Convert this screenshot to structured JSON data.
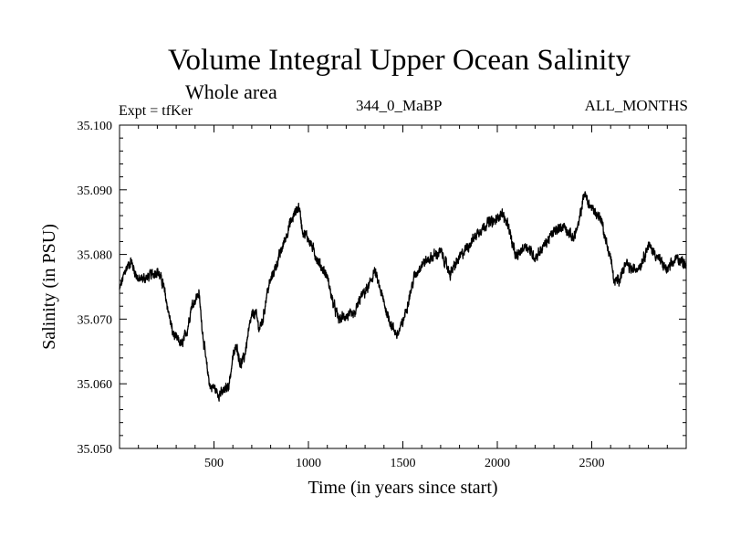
{
  "header": {
    "title": "Volume Integral Upper Ocean Salinity",
    "subtitle": "Whole area",
    "expt": "Expt = tfKer",
    "run": "344_0_MaBP",
    "months": "ALL_MONTHS"
  },
  "chart_data": {
    "type": "line",
    "title": "Volume Integral Upper Ocean Salinity",
    "xlabel": "Time (in years since start)",
    "ylabel": "Salinity (in PSU)",
    "xlim": [
      0,
      3000
    ],
    "ylim": [
      35.05,
      35.1
    ],
    "xticks": [
      500,
      1000,
      1500,
      2000,
      2500
    ],
    "yticks": [
      35.05,
      35.06,
      35.07,
      35.08,
      35.09,
      35.1
    ],
    "ytick_labels": [
      "35.050",
      "35.060",
      "35.070",
      "35.080",
      "35.090",
      "35.100"
    ],
    "grid": false,
    "series": [
      {
        "x": [
          0,
          30,
          60,
          100,
          150,
          200,
          230,
          260,
          280,
          300,
          330,
          360,
          380,
          400,
          420,
          440,
          460,
          480,
          500,
          520,
          540,
          560,
          580,
          600,
          620,
          640,
          660,
          680,
          700,
          720,
          740,
          760,
          780,
          800,
          850,
          900,
          930,
          950,
          970,
          1000,
          1050,
          1100,
          1130,
          1160,
          1200,
          1240,
          1280,
          1320,
          1350,
          1380,
          1410,
          1440,
          1470,
          1500,
          1530,
          1560,
          1600,
          1650,
          1700,
          1750,
          1800,
          1850,
          1900,
          1950,
          1980,
          2000,
          2020,
          2040,
          2060,
          2080,
          2100,
          2150,
          2200,
          2250,
          2300,
          2350,
          2400,
          2430,
          2460,
          2490,
          2520,
          2550,
          2580,
          2600,
          2620,
          2650,
          2680,
          2720,
          2760,
          2800,
          2850,
          2900,
          2950,
          3000
        ],
        "values": [
          35.0745,
          35.0775,
          35.079,
          35.076,
          35.0765,
          35.0775,
          35.0755,
          35.071,
          35.068,
          35.067,
          35.066,
          35.0685,
          35.072,
          35.073,
          35.074,
          35.068,
          35.063,
          35.0595,
          35.0595,
          35.0585,
          35.0585,
          35.059,
          35.06,
          35.064,
          35.066,
          35.063,
          35.064,
          35.0675,
          35.0705,
          35.071,
          35.0685,
          35.07,
          35.074,
          35.076,
          35.08,
          35.0845,
          35.0865,
          35.0875,
          35.0835,
          35.0825,
          35.079,
          35.0765,
          35.0725,
          35.07,
          35.0705,
          35.0705,
          35.0735,
          35.075,
          35.0775,
          35.0745,
          35.0715,
          35.069,
          35.0675,
          35.0695,
          35.073,
          35.0765,
          35.0785,
          35.0795,
          35.0805,
          35.077,
          35.0795,
          35.0815,
          35.0835,
          35.085,
          35.085,
          35.0855,
          35.0865,
          35.0855,
          35.0845,
          35.0815,
          35.0795,
          35.0815,
          35.0795,
          35.0815,
          35.0835,
          35.0845,
          35.0825,
          35.0845,
          35.0895,
          35.0875,
          35.0865,
          35.0855,
          35.0815,
          35.0795,
          35.0755,
          35.0765,
          35.0785,
          35.0775,
          35.0785,
          35.0815,
          35.0795,
          35.0775,
          35.0795,
          35.0785
        ]
      }
    ]
  }
}
